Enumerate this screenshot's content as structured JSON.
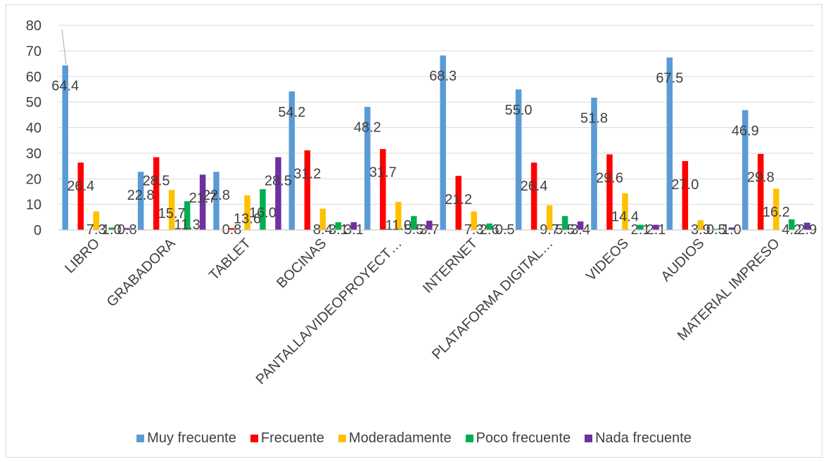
{
  "chart_data": {
    "type": "bar",
    "title": "",
    "xlabel": "",
    "ylabel": "",
    "ylim": [
      0,
      80
    ],
    "yticks": [
      0,
      10,
      20,
      30,
      40,
      50,
      60,
      70,
      80
    ],
    "grid": true,
    "legend_position": "bottom",
    "categories": [
      "LIBRO",
      "GRABADORA",
      "TABLET",
      "BOCINAS",
      "PANTALLA/VIDEOPROYECT…",
      "INTERNET",
      "PLATAFORMA DIGITAL…",
      "VIDEOS",
      "AUDIOS",
      "MATERIAL IMPRESO"
    ],
    "series": [
      {
        "name": "Muy frecuente",
        "color": "#5B9BD5",
        "values": [
          64.4,
          22.8,
          22.8,
          54.2,
          48.2,
          68.3,
          55.0,
          51.8,
          67.5,
          46.9
        ]
      },
      {
        "name": "Frecuente",
        "color": "#FF0000",
        "values": [
          26.4,
          28.5,
          0.8,
          31.2,
          31.7,
          21.2,
          26.4,
          29.6,
          27.0,
          29.8
        ]
      },
      {
        "name": "Moderadamente",
        "color": "#FFC000",
        "values": [
          7.3,
          15.7,
          13.6,
          8.4,
          11.0,
          7.3,
          9.7,
          14.4,
          3.9,
          16.2
        ]
      },
      {
        "name": "Poco frecuente",
        "color": "#00B050",
        "values": [
          1.0,
          11.3,
          16.0,
          3.1,
          5.5,
          2.6,
          5.5,
          2.1,
          0.5,
          4.2
        ]
      },
      {
        "name": "Nada frecuente",
        "color": "#7030A0",
        "values": [
          0.8,
          21.7,
          28.5,
          3.1,
          3.7,
          0.5,
          3.4,
          2.1,
          1.0,
          2.9
        ]
      }
    ]
  }
}
